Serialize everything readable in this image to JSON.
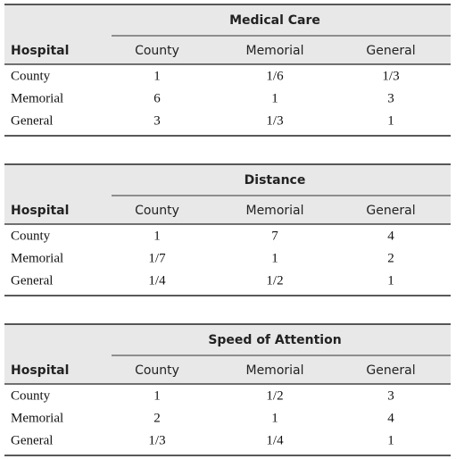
{
  "tables": [
    {
      "title": "Medical Care",
      "corner": "Hospital",
      "columns": [
        "County",
        "Memorial",
        "General"
      ],
      "rows": [
        {
          "label": "County",
          "cells": [
            "1",
            "1/6",
            "1/3"
          ]
        },
        {
          "label": "Memorial",
          "cells": [
            "6",
            "1",
            "3"
          ]
        },
        {
          "label": "General",
          "cells": [
            "3",
            "1/3",
            "1"
          ]
        }
      ]
    },
    {
      "title": "Distance",
      "corner": "Hospital",
      "columns": [
        "County",
        "Memorial",
        "General"
      ],
      "rows": [
        {
          "label": "County",
          "cells": [
            "1",
            "7",
            "4"
          ]
        },
        {
          "label": "Memorial",
          "cells": [
            "1/7",
            "1",
            "2"
          ]
        },
        {
          "label": "General",
          "cells": [
            "1/4",
            "1/2",
            "1"
          ]
        }
      ]
    },
    {
      "title": "Speed of Attention",
      "corner": "Hospital",
      "columns": [
        "County",
        "Memorial",
        "General"
      ],
      "rows": [
        {
          "label": "County",
          "cells": [
            "1",
            "1/2",
            "3"
          ]
        },
        {
          "label": "Memorial",
          "cells": [
            "2",
            "1",
            "4"
          ]
        },
        {
          "label": "General",
          "cells": [
            "1/3",
            "1/4",
            "1"
          ]
        }
      ]
    }
  ]
}
